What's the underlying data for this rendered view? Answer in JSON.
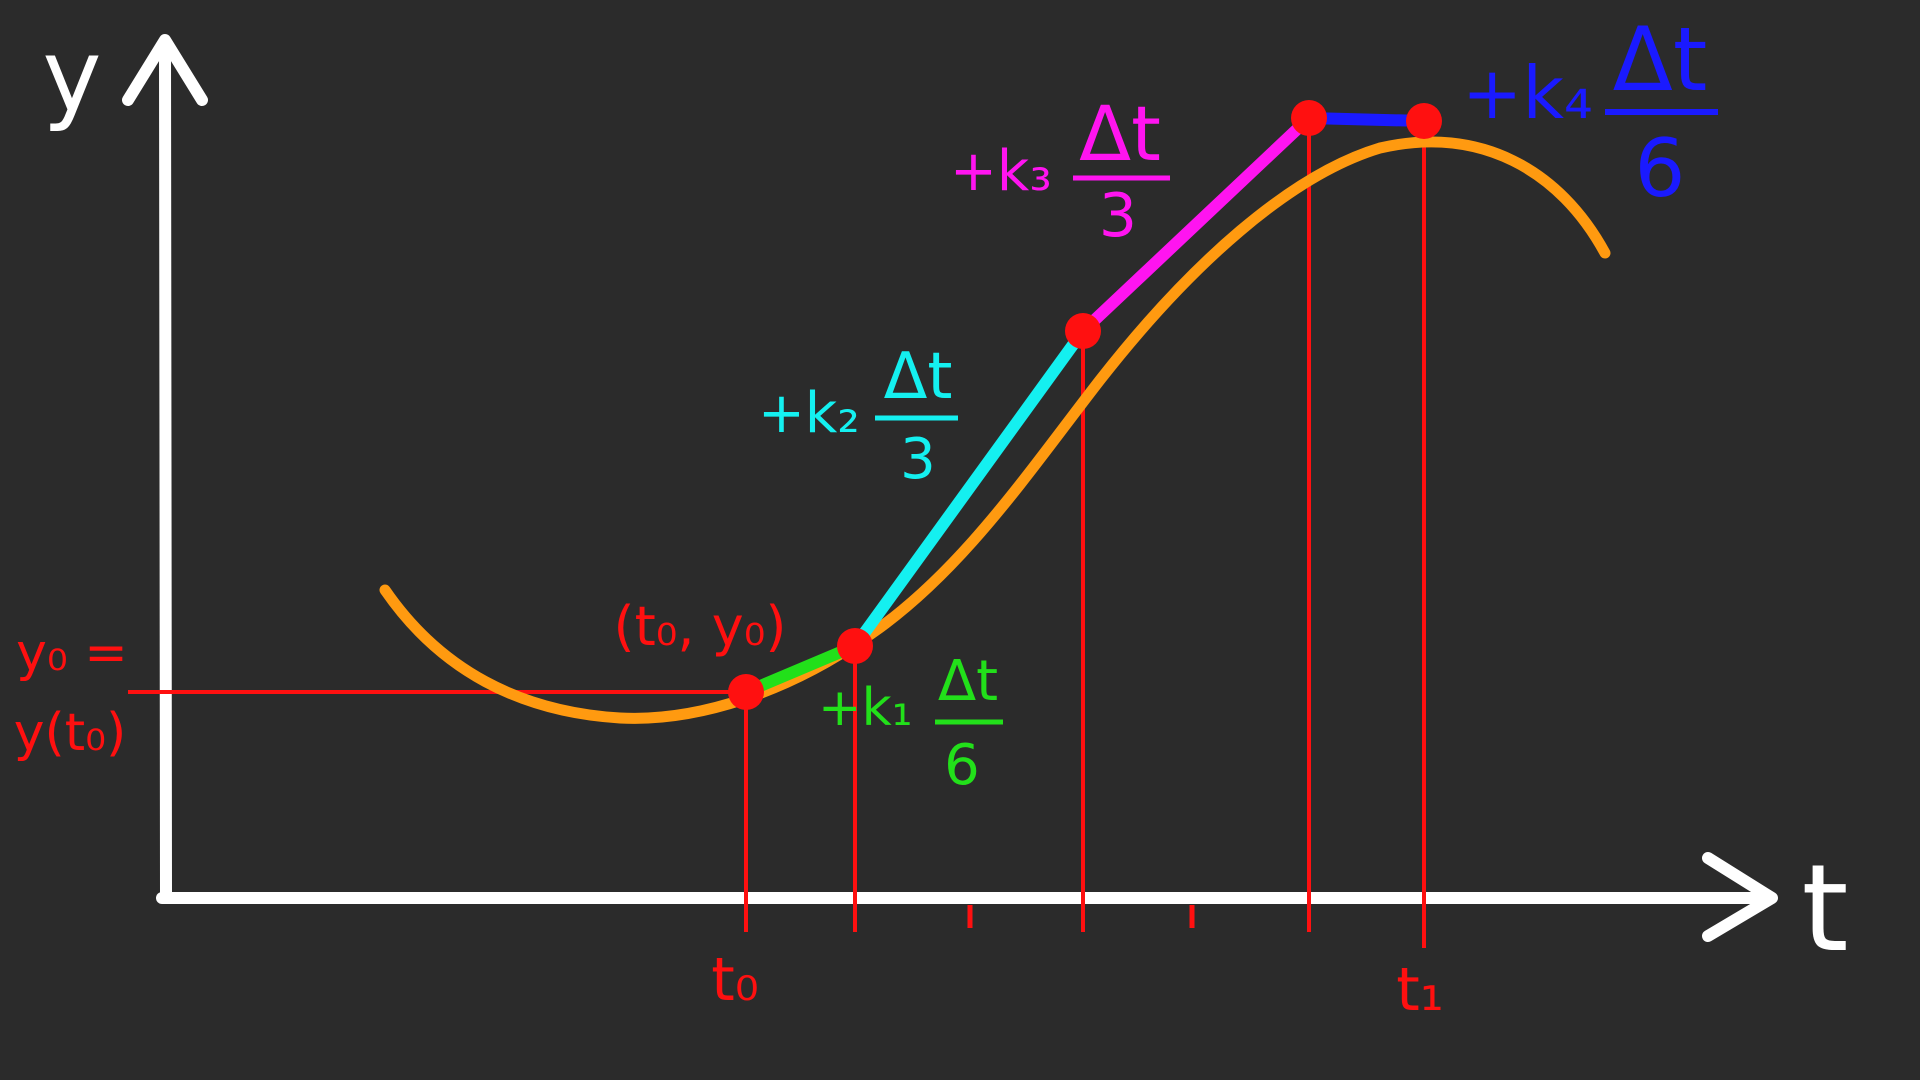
{
  "axes": {
    "y_label": "y",
    "t_label": "t"
  },
  "ticks": {
    "t0_label": "t₀",
    "t1_label": "t₁"
  },
  "initial": {
    "y0_line1": "y₀ =",
    "y0_line2": "y(t₀)",
    "point_label": "(t₀, y₀)"
  },
  "steps": [
    {
      "term": "+k₁",
      "numerator": "Δt",
      "denominator": "6",
      "color": "#22e01a"
    },
    {
      "term": "+k₂",
      "numerator": "Δt",
      "denominator": "3",
      "color": "#14f0f0"
    },
    {
      "term": "+k₃",
      "numerator": "Δt",
      "denominator": "3",
      "color": "#ff14f0"
    },
    {
      "term": "+k₄",
      "numerator": "Δt",
      "denominator": "6",
      "color": "#1a1aff"
    }
  ],
  "colors": {
    "background": "#2b2b2b",
    "axes": "#ffffff",
    "curve": "#ff9a10",
    "markers": "#ff1010"
  }
}
